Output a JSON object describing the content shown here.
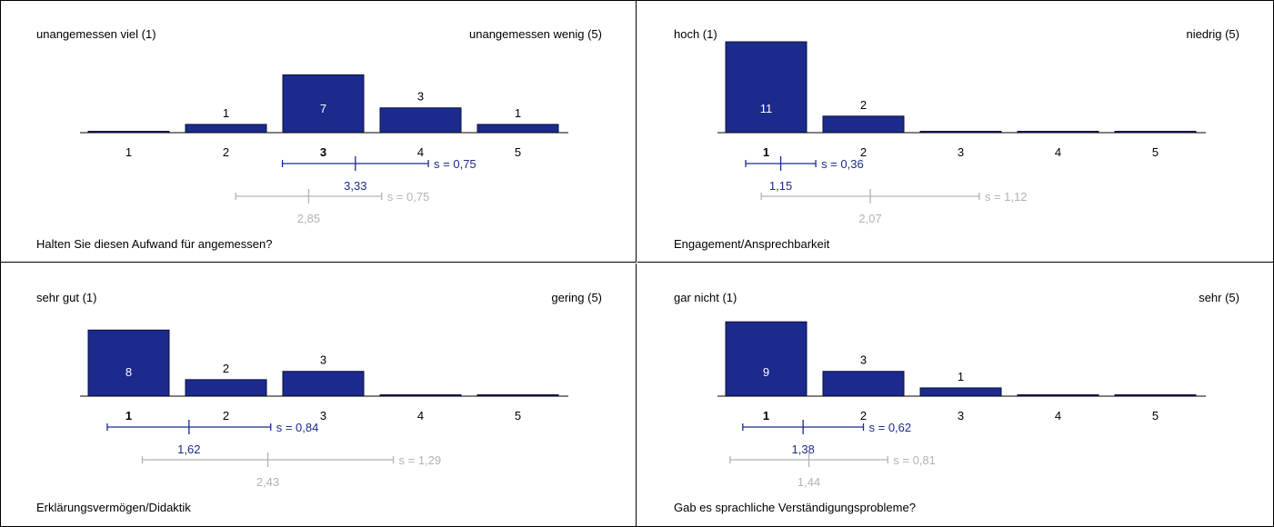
{
  "colors": {
    "bar": "#1b2a8c",
    "bar_stroke": "#0b1140",
    "axis": "#000000",
    "mean": "#1b2a8c",
    "reference": "#b3b3b3",
    "label_in_bar": "#ffffff",
    "label_above_bar": "#000000"
  },
  "chart_data": [
    {
      "type": "bar",
      "question": "Halten Sie diesen Aufwand für angemessen?",
      "left_label": "unangemessen viel (1)",
      "right_label": "unangemessen wenig (5)",
      "categories": [
        "1",
        "2",
        "3",
        "4",
        "5"
      ],
      "values": [
        0,
        1,
        7,
        3,
        1
      ],
      "bar_labels": [
        "",
        "1",
        "7",
        "3",
        "1"
      ],
      "bold_category": "3",
      "mean": {
        "value": 3.33,
        "label": "3,33",
        "sd": 0.75,
        "sd_label": "s = 0,75"
      },
      "reference": {
        "value": 2.85,
        "label": "2,85",
        "sd": 0.75,
        "sd_label": "s = 0,75"
      }
    },
    {
      "type": "bar",
      "question": "Engagement/Ansprechbarkeit",
      "left_label": "hoch (1)",
      "right_label": "niedrig (5)",
      "categories": [
        "1",
        "2",
        "3",
        "4",
        "5"
      ],
      "values": [
        11,
        2,
        0,
        0,
        0
      ],
      "bar_labels": [
        "11",
        "2",
        "",
        "",
        ""
      ],
      "bold_category": "1",
      "mean": {
        "value": 1.15,
        "label": "1,15",
        "sd": 0.36,
        "sd_label": "s = 0,36"
      },
      "reference": {
        "value": 2.07,
        "label": "2,07",
        "sd": 1.12,
        "sd_label": "s = 1,12"
      }
    },
    {
      "type": "bar",
      "question": "Erklärungsvermögen/Didaktik",
      "left_label": "sehr gut (1)",
      "right_label": "gering (5)",
      "categories": [
        "1",
        "2",
        "3",
        "4",
        "5"
      ],
      "values": [
        8,
        2,
        3,
        0,
        0
      ],
      "bar_labels": [
        "8",
        "2",
        "3",
        "",
        ""
      ],
      "bold_category": "1",
      "mean": {
        "value": 1.62,
        "label": "1,62",
        "sd": 0.84,
        "sd_label": "s = 0,84"
      },
      "reference": {
        "value": 2.43,
        "label": "2,43",
        "sd": 1.29,
        "sd_label": "s = 1,29"
      }
    },
    {
      "type": "bar",
      "question": "Gab es sprachliche Verständigungsprobleme?",
      "left_label": "gar nicht (1)",
      "right_label": "sehr (5)",
      "categories": [
        "1",
        "2",
        "3",
        "4",
        "5"
      ],
      "values": [
        9,
        3,
        1,
        0,
        0
      ],
      "bar_labels": [
        "9",
        "3",
        "1",
        "",
        ""
      ],
      "bold_category": "1",
      "mean": {
        "value": 1.38,
        "label": "1,38",
        "sd": 0.62,
        "sd_label": "s = 0,62"
      },
      "reference": {
        "value": 1.44,
        "label": "1,44",
        "sd": 0.81,
        "sd_label": "s = 0,81"
      }
    }
  ]
}
